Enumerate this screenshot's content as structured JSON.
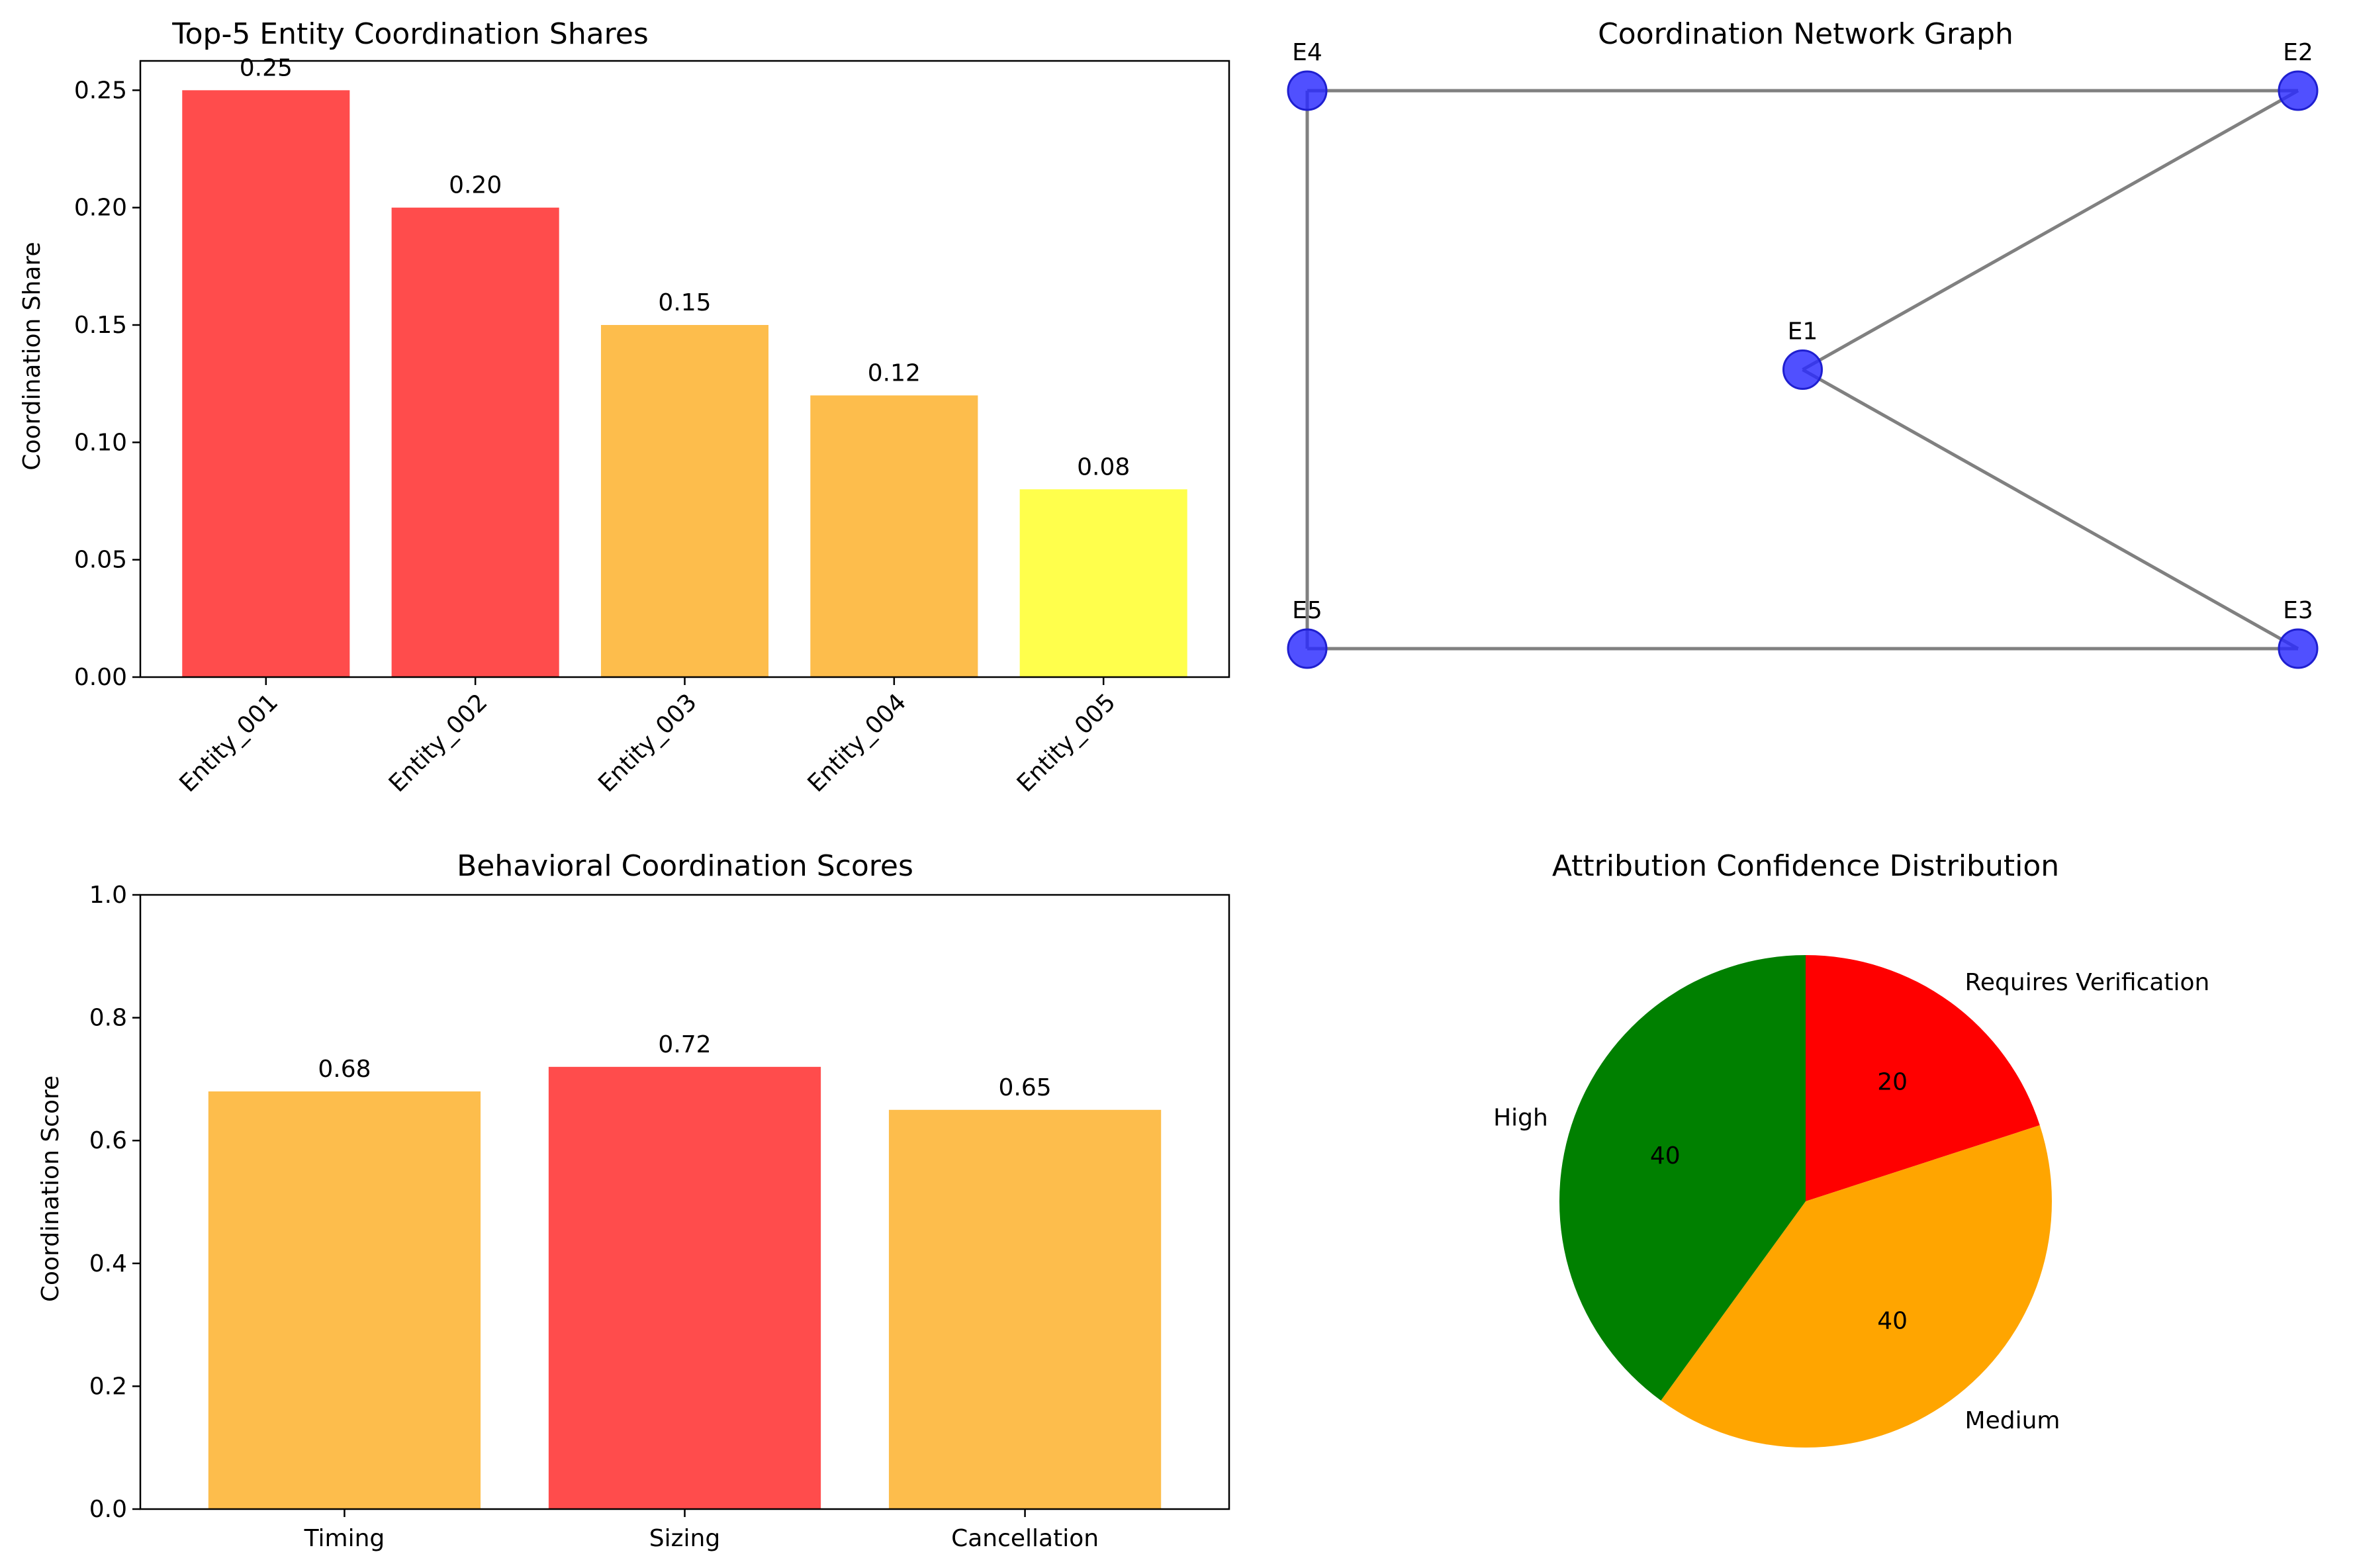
{
  "colors": {
    "red": "#ff4c4c",
    "orange_light": "#fdbd4c",
    "yellow": "#ffff4c",
    "node": "#2a2aff",
    "edge": "#808080",
    "pie_green": "#008000",
    "pie_orange": "#ffa500",
    "pie_red": "#ff0000"
  },
  "chart_data": [
    {
      "type": "bar",
      "title": "Top-5 Entity Coordination Shares",
      "xlabel": "",
      "ylabel": "Coordination Share",
      "ylim": [
        0,
        0.2625
      ],
      "yticks": [
        "0.00",
        "0.05",
        "0.10",
        "0.15",
        "0.20",
        "0.25"
      ],
      "categories": [
        "Entity_001",
        "Entity_002",
        "Entity_003",
        "Entity_004",
        "Entity_005"
      ],
      "values": [
        0.25,
        0.2,
        0.15,
        0.12,
        0.08
      ],
      "value_labels": [
        "0.25",
        "0.20",
        "0.15",
        "0.12",
        "0.08"
      ],
      "bar_colors": [
        "red",
        "red",
        "orange_light",
        "orange_light",
        "yellow"
      ]
    },
    {
      "type": "network",
      "title": "Coordination Network Graph",
      "nodes": [
        {
          "id": "E1",
          "label": "E1",
          "x": 0.5,
          "y": 0.5
        },
        {
          "id": "E2",
          "label": "E2",
          "x": 1.0,
          "y": 1.0
        },
        {
          "id": "E3",
          "label": "E3",
          "x": 1.0,
          "y": 0.0
        },
        {
          "id": "E4",
          "label": "E4",
          "x": 0.0,
          "y": 1.0
        },
        {
          "id": "E5",
          "label": "E5",
          "x": 0.0,
          "y": 0.0
        }
      ],
      "edges": [
        [
          "E1",
          "E2"
        ],
        [
          "E1",
          "E3"
        ],
        [
          "E2",
          "E4"
        ],
        [
          "E4",
          "E5"
        ],
        [
          "E5",
          "E3"
        ]
      ]
    },
    {
      "type": "bar",
      "title": "Behavioral Coordination Scores",
      "xlabel": "",
      "ylabel": "Coordination Score",
      "ylim": [
        0,
        1.0
      ],
      "yticks": [
        "0.0",
        "0.2",
        "0.4",
        "0.6",
        "0.8",
        "1.0"
      ],
      "categories": [
        "Timing",
        "Sizing",
        "Cancellation"
      ],
      "values": [
        0.68,
        0.72,
        0.65
      ],
      "value_labels": [
        "0.68",
        "0.72",
        "0.65"
      ],
      "bar_colors": [
        "orange_light",
        "red",
        "orange_light"
      ]
    },
    {
      "type": "pie",
      "title": "Attribution Confidence Distribution",
      "labels": [
        "Requires Verification",
        "Medium",
        "High"
      ],
      "values": [
        20,
        40,
        40
      ],
      "value_labels": [
        "20",
        "40",
        "40"
      ],
      "slice_colors": [
        "pie_red",
        "pie_orange",
        "pie_green"
      ]
    }
  ]
}
